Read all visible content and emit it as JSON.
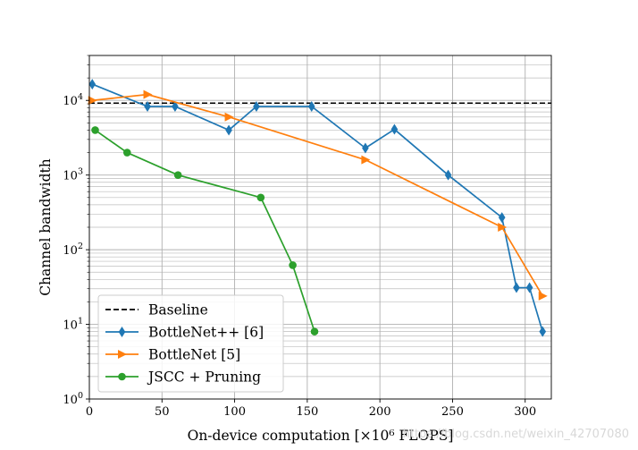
{
  "chart_data": {
    "type": "line",
    "xlabel": "On-device computation [×10⁶ FLOPS]",
    "ylabel": "Channel bandwidth",
    "xlim": [
      0,
      318
    ],
    "ylim": [
      1,
      40000
    ],
    "yscale": "log",
    "grid": true,
    "x_ticks": [
      0,
      50,
      100,
      150,
      200,
      250,
      300
    ],
    "y_ticks": [
      {
        "value": 1,
        "base": "10",
        "exp": "0"
      },
      {
        "value": 10,
        "base": "10",
        "exp": "1"
      },
      {
        "value": 100,
        "base": "10",
        "exp": "2"
      },
      {
        "value": 1000,
        "base": "10",
        "exp": "3"
      },
      {
        "value": 10000,
        "base": "10",
        "exp": "4"
      }
    ],
    "legend_position": "lower-left",
    "baseline": {
      "name": "Baseline",
      "y": 9200,
      "color": "#000000"
    },
    "series": [
      {
        "name": "BottleNet++ [6]",
        "color": "#1f77b4",
        "marker": "diamond",
        "x": [
          2,
          40,
          59,
          96,
          115,
          153,
          190,
          210,
          247,
          284,
          294,
          303,
          312
        ],
        "y": [
          16500,
          8300,
          8300,
          4000,
          8300,
          8300,
          2300,
          4100,
          1000,
          270,
          31,
          31,
          8
        ]
      },
      {
        "name": "BottleNet [5]",
        "color": "#ff7f0e",
        "marker": "triangle-right",
        "x": [
          2,
          40,
          96,
          190,
          284,
          312
        ],
        "y": [
          10000,
          12000,
          6000,
          1600,
          200,
          24
        ]
      },
      {
        "name": "JSCC + Pruning",
        "color": "#2ca02c",
        "marker": "circle",
        "x": [
          4,
          26,
          61,
          118,
          140,
          155
        ],
        "y": [
          4000,
          2000,
          1000,
          500,
          62,
          8
        ]
      }
    ]
  },
  "watermark": "https://blog.csdn.net/weixin_42707080"
}
